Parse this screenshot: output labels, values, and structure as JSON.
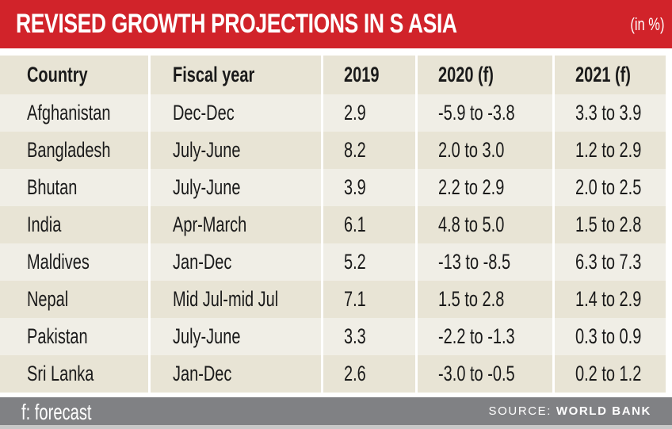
{
  "title": {
    "main": "REVISED GROWTH PROJECTIONS IN S ASIA",
    "unit": "(in %)"
  },
  "colors": {
    "title_bg": "#d1232a",
    "header_bg": "#e8e4d5",
    "row_alt_bg": "#f0eee6",
    "footer_bg": "#808184"
  },
  "table": {
    "headers": [
      "Country",
      "Fiscal year",
      "2019",
      "2020 (f)",
      "2021 (f)"
    ],
    "rows": [
      [
        "Afghanistan",
        "Dec-Dec",
        "2.9",
        "-5.9 to -3.8",
        "3.3 to 3.9"
      ],
      [
        "Bangladesh",
        "July-June",
        "8.2",
        "2.0 to 3.0",
        "1.2 to 2.9"
      ],
      [
        "Bhutan",
        "July-June",
        "3.9",
        "2.2 to 2.9",
        "2.0 to 2.5"
      ],
      [
        "India",
        "Apr-March",
        "6.1",
        "4.8 to 5.0",
        "1.5 to 2.8"
      ],
      [
        "Maldives",
        "Jan-Dec",
        "5.2",
        "-13 to -8.5",
        "6.3 to 7.3"
      ],
      [
        "Nepal",
        "Mid Jul-mid Jul",
        "7.1",
        "1.5 to 2.8",
        "1.4 to 2.9"
      ],
      [
        "Pakistan",
        "July-June",
        "3.3",
        "-2.2 to -1.3",
        "0.3 to 0.9"
      ],
      [
        "Sri Lanka",
        "Jan-Dec",
        "2.6",
        "-3.0 to -0.5",
        "0.2 to 1.2"
      ]
    ]
  },
  "footer": {
    "note": "f: forecast",
    "source_label": "SOURCE:",
    "source_name": "WORLD BANK"
  }
}
